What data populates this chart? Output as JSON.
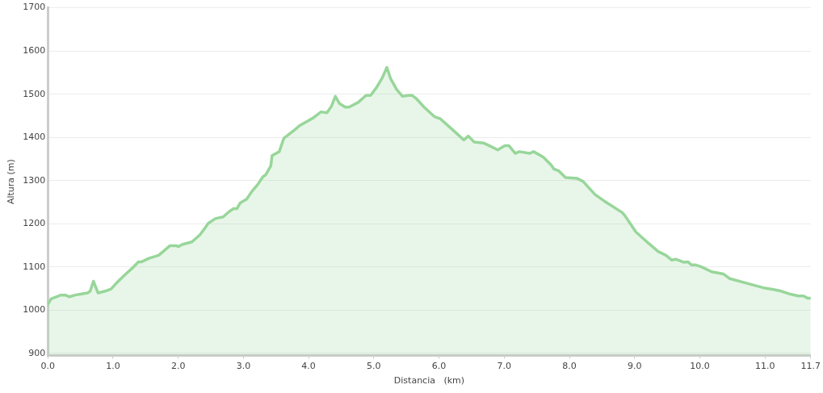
{
  "chart_data": {
    "type": "area",
    "xlabel": "Distancia   (km)",
    "ylabel": "Altura (m)",
    "xlim": [
      0,
      11.7
    ],
    "xticks": [
      {
        "value": 0,
        "label": "0.0"
      },
      {
        "value": 1,
        "label": "1.0"
      },
      {
        "value": 2,
        "label": "2.0"
      },
      {
        "value": 3,
        "label": "3.0"
      },
      {
        "value": 4,
        "label": "4.0"
      },
      {
        "value": 5,
        "label": "5.0"
      },
      {
        "value": 6,
        "label": "6.0"
      },
      {
        "value": 7,
        "label": "7.0"
      },
      {
        "value": 8,
        "label": "8.0"
      },
      {
        "value": 9,
        "label": "9.0"
      },
      {
        "value": 10,
        "label": "10.0"
      },
      {
        "value": 11,
        "label": "11.0"
      },
      11.7
    ],
    "ylim": [
      895,
      1700
    ],
    "yticks": [
      900,
      1000,
      1100,
      1200,
      1300,
      1400,
      1500,
      1600,
      1700
    ],
    "grid": "y",
    "legend": false,
    "marker": "none",
    "line_style": "solid",
    "series": [
      {
        "color": "#98d69a",
        "x": [
          0,
          0.05,
          0.13,
          0.2,
          0.27,
          0.33,
          0.42,
          0.5,
          0.61,
          0.65,
          0.7,
          0.77,
          0.88,
          0.97,
          1.06,
          1.17,
          1.3,
          1.39,
          1.44,
          1.55,
          1.7,
          1.77,
          1.87,
          1.98,
          2.0,
          2.06,
          2.21,
          2.33,
          2.41,
          2.46,
          2.57,
          2.69,
          2.78,
          2.85,
          2.9,
          2.95,
          3.05,
          3.13,
          3.22,
          3.3,
          3.34,
          3.42,
          3.44,
          3.55,
          3.62,
          3.79,
          3.86,
          4.07,
          4.19,
          4.28,
          4.35,
          4.41,
          4.47,
          4.56,
          4.62,
          4.76,
          4.88,
          4.95,
          5.04,
          5.13,
          5.2,
          5.26,
          5.35,
          5.44,
          5.53,
          5.59,
          5.65,
          5.77,
          5.93,
          6.02,
          6.22,
          6.38,
          6.45,
          6.54,
          6.68,
          6.78,
          6.9,
          7.01,
          7.07,
          7.17,
          7.23,
          7.39,
          7.45,
          7.6,
          7.72,
          7.76,
          7.84,
          7.94,
          8.12,
          8.21,
          8.39,
          8.53,
          8.81,
          8.85,
          9.02,
          9.22,
          9.36,
          9.48,
          9.57,
          9.63,
          9.75,
          9.82,
          9.87,
          9.93,
          10.03,
          10.18,
          10.36,
          10.46,
          10.68,
          10.85,
          11.0,
          11.13,
          11.25,
          11.39,
          11.51,
          11.59,
          11.65,
          11.7
        ],
        "values": [
          1013,
          1026,
          1031,
          1035,
          1035,
          1031,
          1035,
          1037,
          1040,
          1044,
          1067,
          1040,
          1044,
          1049,
          1064,
          1080,
          1098,
          1112,
          1112,
          1120,
          1127,
          1136,
          1149,
          1149,
          1147,
          1152,
          1158,
          1174,
          1190,
          1201,
          1212,
          1216,
          1228,
          1235,
          1235,
          1248,
          1257,
          1275,
          1291,
          1309,
          1313,
          1334,
          1358,
          1367,
          1398,
          1418,
          1427,
          1445,
          1459,
          1457,
          1472,
          1495,
          1479,
          1470,
          1470,
          1481,
          1497,
          1497,
          1515,
          1538,
          1562,
          1535,
          1511,
          1495,
          1497,
          1497,
          1490,
          1470,
          1448,
          1443,
          1416,
          1394,
          1403,
          1389,
          1387,
          1380,
          1371,
          1381,
          1381,
          1363,
          1367,
          1363,
          1367,
          1354,
          1336,
          1327,
          1322,
          1307,
          1305,
          1298,
          1268,
          1253,
          1226,
          1219,
          1181,
          1154,
          1136,
          1127,
          1116,
          1118,
          1111,
          1112,
          1105,
          1105,
          1100,
          1089,
          1084,
          1073,
          1064,
          1057,
          1051,
          1048,
          1044,
          1037,
          1033,
          1033,
          1028,
          1028
        ]
      }
    ]
  }
}
